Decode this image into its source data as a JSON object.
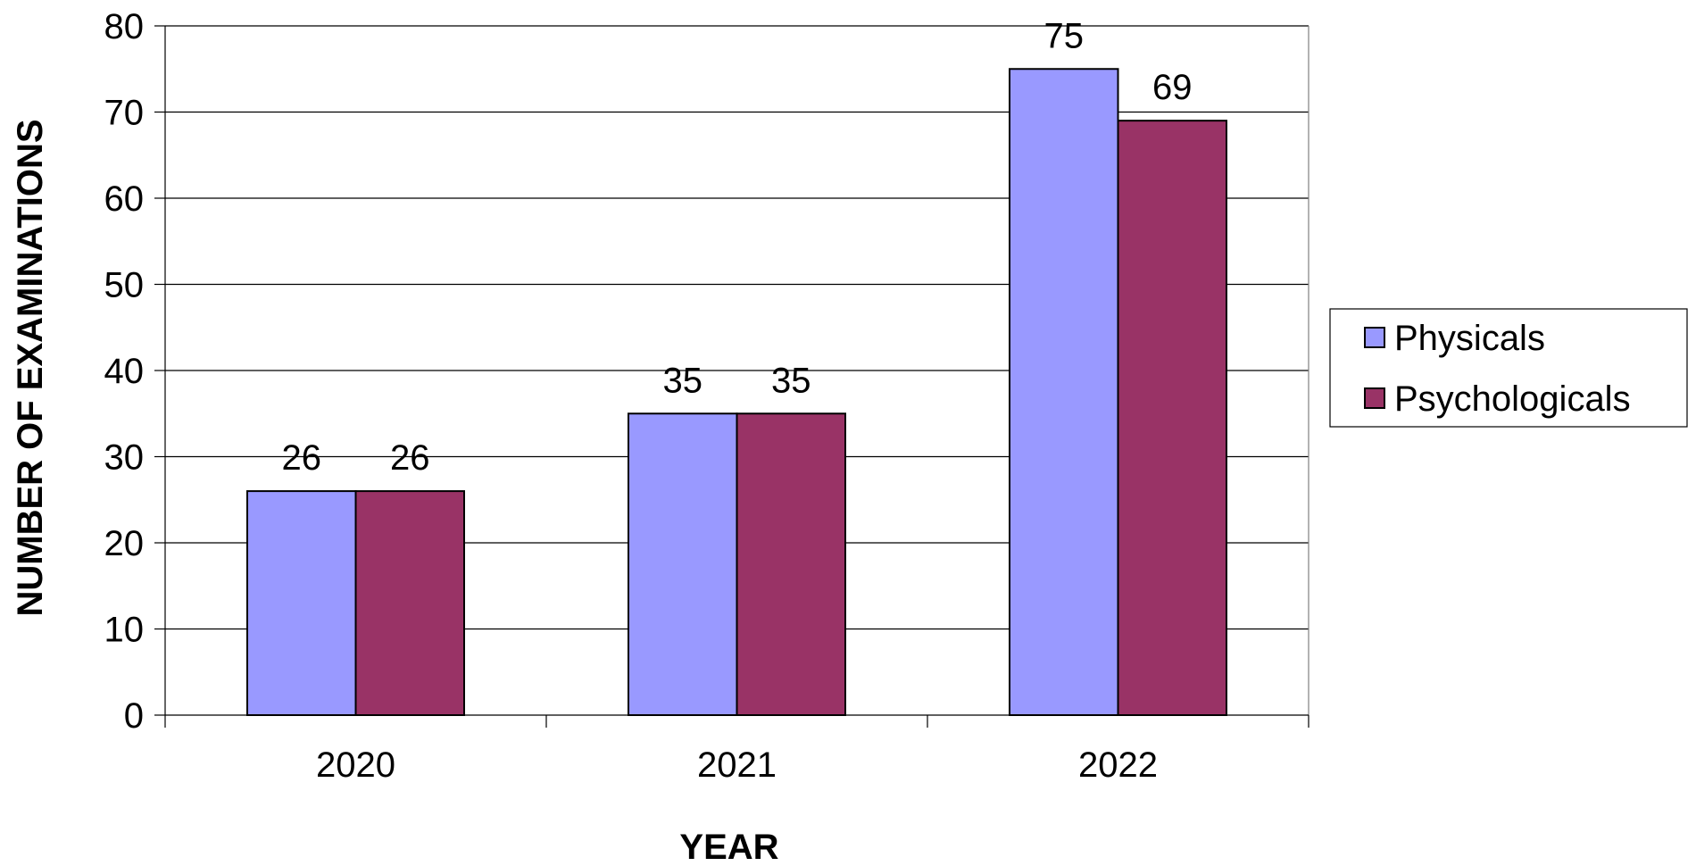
{
  "chart_data": {
    "type": "bar",
    "title": "",
    "xlabel": "YEAR",
    "ylabel": "NUMBER OF EXAMINATIONS",
    "categories": [
      "2020",
      "2021",
      "2022"
    ],
    "series": [
      {
        "name": "Physicals",
        "values": [
          26,
          35,
          75
        ],
        "color": "#9999ff"
      },
      {
        "name": "Psychologicals",
        "values": [
          26,
          35,
          69
        ],
        "color": "#993366"
      }
    ],
    "ylim": [
      0,
      80
    ],
    "yticks": [
      0,
      10,
      20,
      30,
      40,
      50,
      60,
      70,
      80
    ],
    "grid": true,
    "legend_position": "right",
    "data_labels": true
  }
}
